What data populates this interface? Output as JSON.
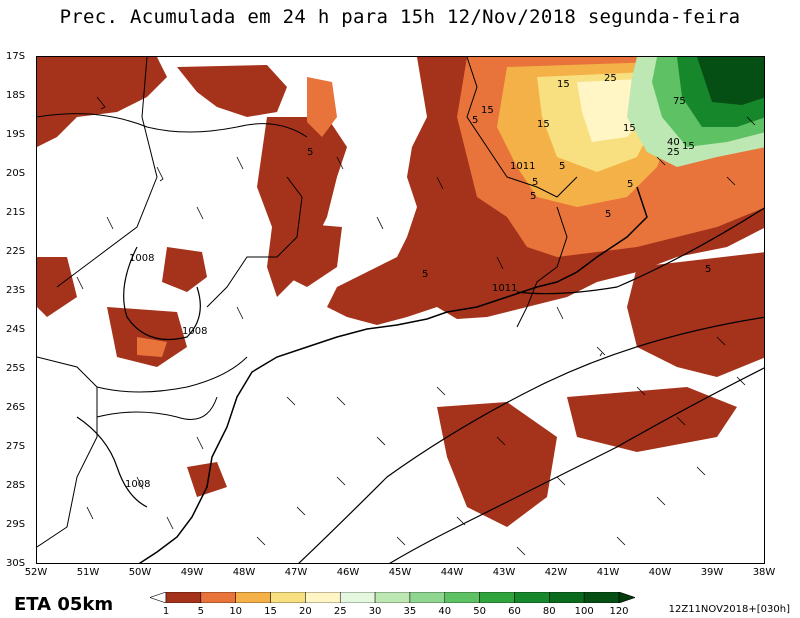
{
  "title": "Prec. Acumulada em 24 h para 15h 12/Nov/2018 segunda-feira",
  "lat_labels": [
    "17S",
    "18S",
    "19S",
    "20S",
    "21S",
    "22S",
    "23S",
    "24S",
    "25S",
    "26S",
    "27S",
    "28S",
    "29S",
    "30S"
  ],
  "lon_labels": [
    "52W",
    "51W",
    "50W",
    "49W",
    "48W",
    "47W",
    "46W",
    "45W",
    "44W",
    "43W",
    "42W",
    "41W",
    "40W",
    "39W",
    "38W"
  ],
  "brand": "ETA 05km",
  "run_info": "12Z11NOV2018+[030h]",
  "colorbar": {
    "levels": [
      "1",
      "5",
      "10",
      "15",
      "20",
      "25",
      "30",
      "35",
      "40",
      "50",
      "60",
      "80",
      "100",
      "120"
    ],
    "colors": [
      "#ffffff",
      "#a5321a",
      "#e8743b",
      "#f4b147",
      "#f8df7f",
      "#fff5c5",
      "#e6f7e0",
      "#bde8b4",
      "#8fd690",
      "#5ec163",
      "#30a43c",
      "#17872c",
      "#0a6a1e",
      "#054f14",
      "#033a0c"
    ]
  },
  "contour_labels": {
    "isobars": [
      "1008",
      "1008",
      "1008",
      "1011",
      "1011"
    ],
    "precip": [
      "5",
      "5",
      "5",
      "5",
      "5",
      "5",
      "5",
      "5",
      "5",
      "15",
      "15",
      "15",
      "15",
      "15",
      "25",
      "25",
      "40",
      "75"
    ]
  },
  "icons": {
    "wind_barbs": "wind-barb-icon",
    "arrow_left": "triangle-left-icon",
    "arrow_right": "triangle-right-icon"
  }
}
